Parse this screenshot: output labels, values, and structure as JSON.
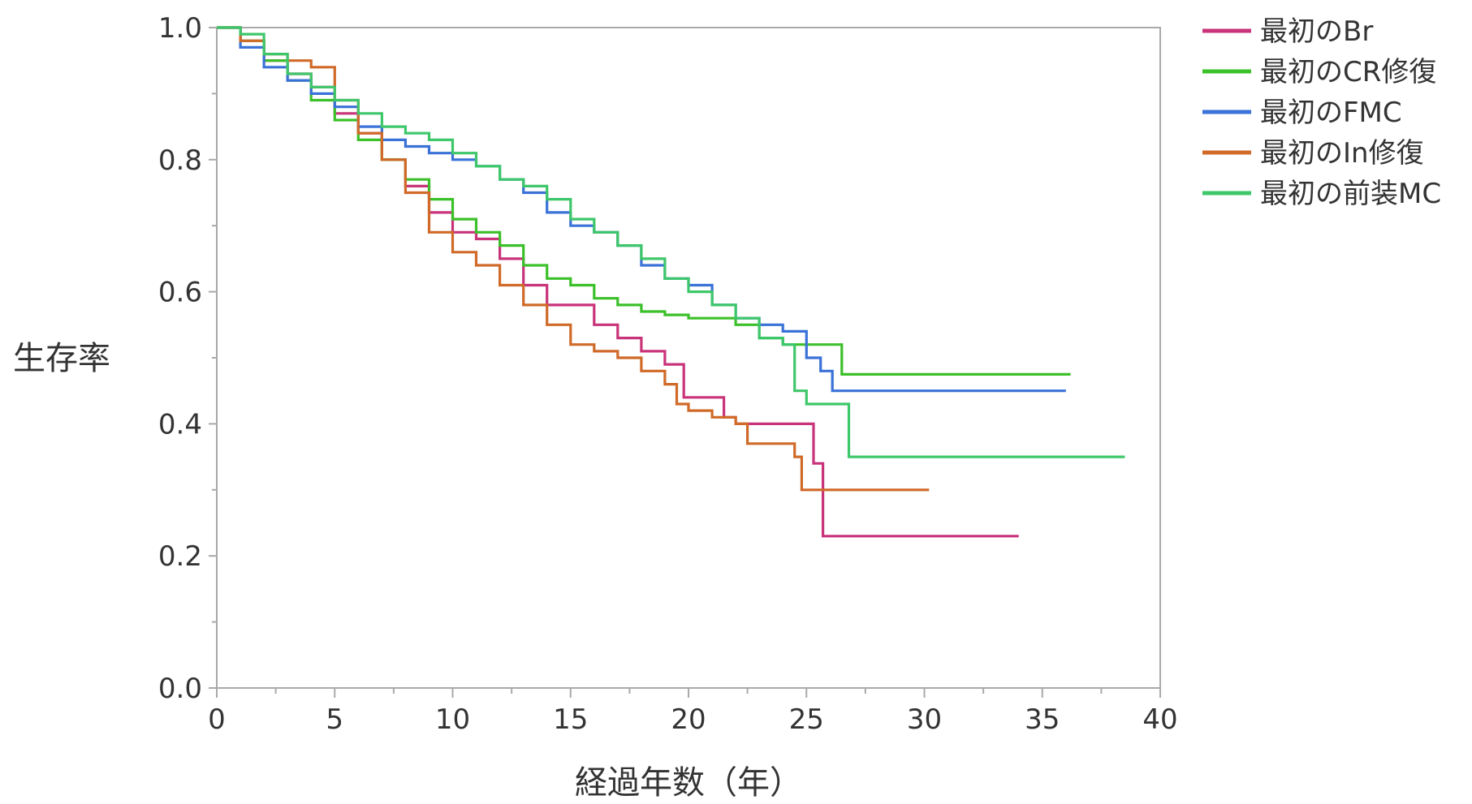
{
  "chart_data": {
    "type": "line",
    "subtype": "step",
    "title": "",
    "xlabel": "経過年数（年）",
    "ylabel": "生存率",
    "xlim": [
      0,
      40
    ],
    "ylim": [
      0,
      1
    ],
    "x_ticks": [
      0,
      5,
      10,
      15,
      20,
      25,
      30,
      35,
      40
    ],
    "x_tick_labels": [
      "0",
      "5",
      "10",
      "15",
      "20",
      "25",
      "30",
      "35",
      "40"
    ],
    "y_ticks": [
      0,
      0.2,
      0.4,
      0.6,
      0.8,
      1
    ],
    "y_tick_labels": [
      "0.0",
      "0.2",
      "0.4",
      "0.6",
      "0.8",
      "1.0"
    ],
    "grid": false,
    "legend_position": "right",
    "series": [
      {
        "name": "最初のBr",
        "color": "#c8337a",
        "points": [
          [
            0,
            1.0
          ],
          [
            1,
            0.98
          ],
          [
            2,
            0.95
          ],
          [
            3,
            0.93
          ],
          [
            4,
            0.91
          ],
          [
            5,
            0.87
          ],
          [
            6,
            0.84
          ],
          [
            7,
            0.8
          ],
          [
            8,
            0.76
          ],
          [
            9,
            0.72
          ],
          [
            10,
            0.69
          ],
          [
            11,
            0.68
          ],
          [
            12,
            0.65
          ],
          [
            13,
            0.61
          ],
          [
            14,
            0.58
          ],
          [
            15,
            0.58
          ],
          [
            16,
            0.55
          ],
          [
            17,
            0.53
          ],
          [
            18,
            0.51
          ],
          [
            19,
            0.49
          ],
          [
            19.8,
            0.44
          ],
          [
            21.5,
            0.41
          ],
          [
            22,
            0.4
          ],
          [
            25.3,
            0.4
          ],
          [
            25.3,
            0.34
          ],
          [
            25.7,
            0.34
          ],
          [
            25.7,
            0.23
          ],
          [
            34,
            0.23
          ]
        ]
      },
      {
        "name": "最初のCR修復",
        "color": "#3cc02a",
        "points": [
          [
            0,
            1.0
          ],
          [
            1,
            0.98
          ],
          [
            2,
            0.95
          ],
          [
            3,
            0.92
          ],
          [
            4,
            0.89
          ],
          [
            5,
            0.86
          ],
          [
            6,
            0.83
          ],
          [
            7,
            0.8
          ],
          [
            8,
            0.77
          ],
          [
            9,
            0.74
          ],
          [
            10,
            0.71
          ],
          [
            11,
            0.69
          ],
          [
            12,
            0.67
          ],
          [
            13,
            0.64
          ],
          [
            14,
            0.62
          ],
          [
            15,
            0.61
          ],
          [
            16,
            0.59
          ],
          [
            17,
            0.58
          ],
          [
            18,
            0.57
          ],
          [
            19,
            0.565
          ],
          [
            20,
            0.56
          ],
          [
            21,
            0.56
          ],
          [
            22,
            0.55
          ],
          [
            23,
            0.53
          ],
          [
            24,
            0.52
          ],
          [
            25.5,
            0.52
          ],
          [
            26.5,
            0.5
          ],
          [
            26.5,
            0.475
          ],
          [
            36.2,
            0.475
          ]
        ]
      },
      {
        "name": "最初のFMC",
        "color": "#3a72d8",
        "points": [
          [
            0,
            1.0
          ],
          [
            1,
            0.97
          ],
          [
            2,
            0.94
          ],
          [
            3,
            0.92
          ],
          [
            4,
            0.9
          ],
          [
            5,
            0.88
          ],
          [
            6,
            0.85
          ],
          [
            7,
            0.83
          ],
          [
            8,
            0.82
          ],
          [
            9,
            0.81
          ],
          [
            10,
            0.8
          ],
          [
            11,
            0.79
          ],
          [
            12,
            0.77
          ],
          [
            13,
            0.75
          ],
          [
            14,
            0.72
          ],
          [
            15,
            0.7
          ],
          [
            16,
            0.69
          ],
          [
            17,
            0.67
          ],
          [
            18,
            0.64
          ],
          [
            19,
            0.62
          ],
          [
            20,
            0.61
          ],
          [
            21,
            0.58
          ],
          [
            22,
            0.56
          ],
          [
            23,
            0.55
          ],
          [
            24,
            0.54
          ],
          [
            25,
            0.5
          ],
          [
            25.6,
            0.48
          ],
          [
            26.1,
            0.45
          ],
          [
            36,
            0.45
          ]
        ]
      },
      {
        "name": "最初のIn修復",
        "color": "#d06a28",
        "points": [
          [
            0,
            1.0
          ],
          [
            1,
            0.98
          ],
          [
            2,
            0.96
          ],
          [
            3,
            0.95
          ],
          [
            4,
            0.94
          ],
          [
            5,
            0.89
          ],
          [
            6,
            0.84
          ],
          [
            7,
            0.8
          ],
          [
            8,
            0.75
          ],
          [
            9,
            0.69
          ],
          [
            10,
            0.66
          ],
          [
            11,
            0.64
          ],
          [
            12,
            0.61
          ],
          [
            13,
            0.58
          ],
          [
            14,
            0.55
          ],
          [
            15,
            0.52
          ],
          [
            16,
            0.51
          ],
          [
            17,
            0.5
          ],
          [
            18,
            0.48
          ],
          [
            19,
            0.46
          ],
          [
            19.5,
            0.43
          ],
          [
            20,
            0.42
          ],
          [
            21,
            0.41
          ],
          [
            22,
            0.4
          ],
          [
            22.5,
            0.37
          ],
          [
            24,
            0.37
          ],
          [
            24.5,
            0.35
          ],
          [
            24.8,
            0.3
          ],
          [
            30.2,
            0.3
          ]
        ]
      },
      {
        "name": "最初の前装MC",
        "color": "#3ec76a",
        "points": [
          [
            0,
            1.0
          ],
          [
            1,
            0.99
          ],
          [
            2,
            0.96
          ],
          [
            3,
            0.93
          ],
          [
            4,
            0.91
          ],
          [
            5,
            0.89
          ],
          [
            6,
            0.87
          ],
          [
            7,
            0.85
          ],
          [
            8,
            0.84
          ],
          [
            9,
            0.83
          ],
          [
            10,
            0.81
          ],
          [
            11,
            0.79
          ],
          [
            12,
            0.77
          ],
          [
            13,
            0.76
          ],
          [
            14,
            0.74
          ],
          [
            15,
            0.71
          ],
          [
            16,
            0.69
          ],
          [
            17,
            0.67
          ],
          [
            18,
            0.65
          ],
          [
            19,
            0.62
          ],
          [
            20,
            0.6
          ],
          [
            21,
            0.58
          ],
          [
            22,
            0.56
          ],
          [
            23,
            0.53
          ],
          [
            24,
            0.52
          ],
          [
            24.5,
            0.45
          ],
          [
            25,
            0.43
          ],
          [
            26.8,
            0.43
          ],
          [
            26.8,
            0.35
          ],
          [
            38.5,
            0.35
          ]
        ]
      }
    ]
  }
}
